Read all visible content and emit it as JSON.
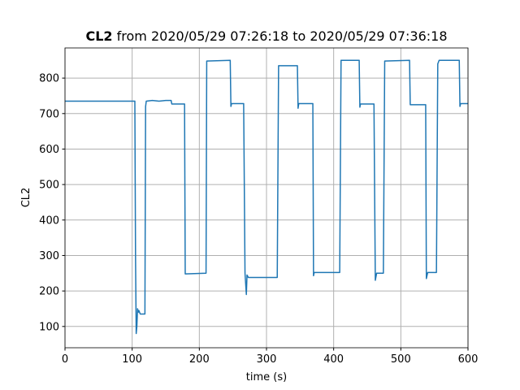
{
  "chart_data": {
    "type": "line",
    "title_bold": "CL2",
    "title": "from 2020/05/29 07:26:18 to 2020/05/29 07:36:18",
    "x_label": "time (s)",
    "y_label": "CL2",
    "x": [
      0,
      104,
      105,
      106,
      107,
      108,
      109,
      110,
      112,
      119,
      120,
      121,
      130,
      140,
      150,
      158,
      159,
      178,
      179,
      210,
      211,
      246,
      247,
      248,
      266,
      268,
      270,
      271,
      273,
      316,
      318,
      346,
      347,
      348,
      369,
      370,
      371,
      409,
      411,
      438,
      439,
      440,
      460,
      462,
      464,
      474,
      476,
      513,
      514,
      537,
      538,
      540,
      553,
      555,
      557,
      587,
      588,
      589,
      600
    ],
    "series": [
      {
        "color": "#1f77b4",
        "values": [
          735,
          735,
          300,
          80,
          100,
          150,
          140,
          145,
          135,
          135,
          720,
          735,
          737,
          735,
          737,
          737,
          727,
          727,
          248,
          250,
          848,
          850,
          720,
          728,
          728,
          250,
          190,
          245,
          238,
          238,
          835,
          835,
          715,
          728,
          728,
          243,
          252,
          252,
          850,
          850,
          718,
          727,
          727,
          230,
          250,
          250,
          848,
          850,
          725,
          725,
          235,
          252,
          252,
          840,
          850,
          850,
          720,
          728,
          728
        ]
      }
    ],
    "xlim": [
      0,
      600
    ],
    "ylim": [
      40,
      885
    ],
    "xticks": [
      0,
      100,
      200,
      300,
      400,
      500,
      600
    ],
    "yticks": [
      100,
      200,
      300,
      400,
      500,
      600,
      700,
      800
    ],
    "grid": true
  }
}
